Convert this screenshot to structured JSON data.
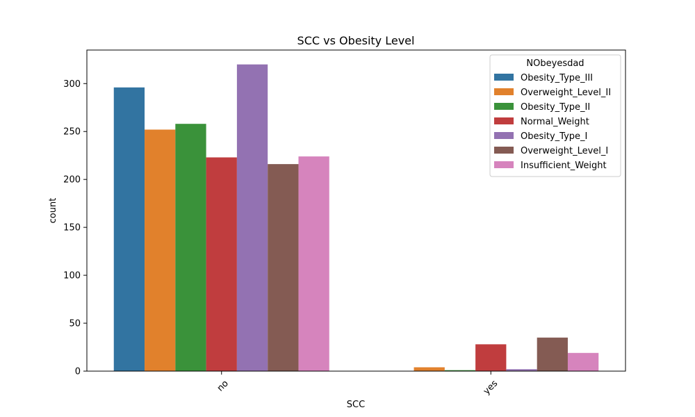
{
  "chart_data": {
    "type": "bar",
    "title": "SCC vs Obesity Level",
    "xlabel": "SCC",
    "ylabel": "count",
    "categories": [
      "no",
      "yes"
    ],
    "ylim": [
      0,
      335
    ],
    "yticks": [
      0,
      50,
      100,
      150,
      200,
      250,
      300
    ],
    "grid": false,
    "legend": {
      "title": "NObeyesdad",
      "placement": "top-right"
    },
    "series": [
      {
        "name": "Obesity_Type_III",
        "color": "#3274a1",
        "values": [
          296,
          0
        ]
      },
      {
        "name": "Overweight_Level_II",
        "color": "#e1812c",
        "values": [
          252,
          4
        ]
      },
      {
        "name": "Obesity_Type_II",
        "color": "#3a923a",
        "values": [
          258,
          1
        ]
      },
      {
        "name": "Normal_Weight",
        "color": "#c03d3e",
        "values": [
          223,
          28
        ]
      },
      {
        "name": "Obesity_Type_I",
        "color": "#9372b2",
        "values": [
          320,
          2
        ]
      },
      {
        "name": "Overweight_Level_I",
        "color": "#845b53",
        "values": [
          216,
          35
        ]
      },
      {
        "name": "Insufficient_Weight",
        "color": "#d684bd",
        "values": [
          224,
          19
        ]
      }
    ]
  }
}
